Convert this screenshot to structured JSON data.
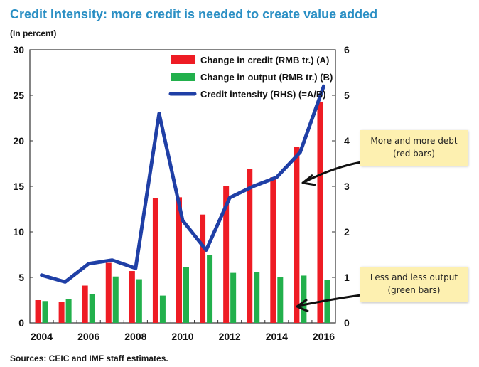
{
  "title": "Credit Intensity: more credit is needed to create value added",
  "subtitle": "(In percent)",
  "source": "Sources: CEIC and IMF staff estimates.",
  "colors": {
    "credit": "#ee1c24",
    "output": "#22b04c",
    "intensity": "#1f3fa6",
    "title": "#2a8fc4",
    "note": "#fdf0b0"
  },
  "notes": [
    {
      "line1": "More and more debt",
      "line2": "(red bars)"
    },
    {
      "line1": "Less and less output",
      "line2": "(green bars)"
    }
  ],
  "chart_data": {
    "type": "bar",
    "categories": [
      "2004",
      "2005",
      "2006",
      "2007",
      "2008",
      "2009",
      "2010",
      "2011",
      "2012",
      "2013",
      "2014",
      "2015",
      "2016"
    ],
    "x_tick_labels": [
      "2004",
      "2006",
      "2008",
      "2010",
      "2012",
      "2014",
      "2016"
    ],
    "y_left": {
      "ylim": [
        0,
        30
      ],
      "ticks": [
        "0",
        "5",
        "10",
        "15",
        "20",
        "25",
        "30"
      ]
    },
    "y_right": {
      "ylim": [
        0,
        6
      ],
      "ticks": [
        "0",
        "1",
        "2",
        "3",
        "4",
        "5",
        "6"
      ]
    },
    "series": [
      {
        "name": "Change in credit (RMB tr.) (A)",
        "type": "bar",
        "axis": "left",
        "values": [
          2.5,
          2.3,
          4.1,
          6.6,
          5.7,
          13.7,
          13.8,
          11.9,
          15.0,
          16.9,
          16.0,
          19.3,
          24.3
        ]
      },
      {
        "name": "Change in output (RMB tr.) (B)",
        "type": "bar",
        "axis": "left",
        "values": [
          2.4,
          2.6,
          3.2,
          5.1,
          4.8,
          3.0,
          6.1,
          7.5,
          5.5,
          5.6,
          5.0,
          5.2,
          4.7
        ]
      },
      {
        "name": "Credit intensity (RHS) (=A/B)",
        "type": "line",
        "axis": "right",
        "values": [
          1.05,
          0.9,
          1.3,
          1.38,
          1.2,
          4.6,
          2.25,
          1.6,
          2.75,
          3.0,
          3.2,
          3.75,
          5.2
        ]
      }
    ],
    "grid": false,
    "legend": "top-right"
  }
}
